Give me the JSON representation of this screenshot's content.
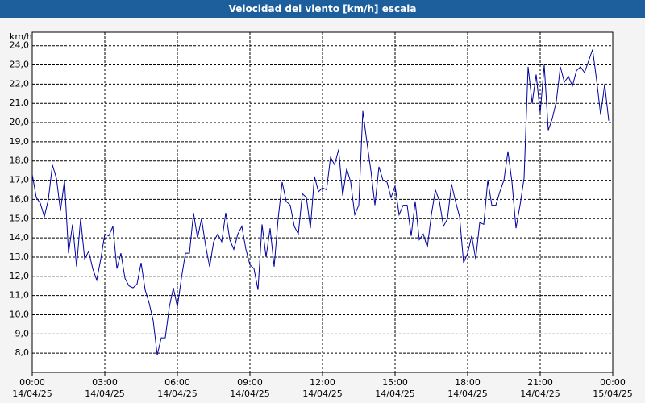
{
  "chart_data": {
    "type": "line",
    "title": "Velocidad del viento [km/h] escala",
    "y_label": "km/h",
    "xlim": [
      0,
      1440
    ],
    "xticks": [
      {
        "value": 0,
        "label": "00:00\n14/04/25"
      },
      {
        "value": 180,
        "label": "03:00\n14/04/25"
      },
      {
        "value": 360,
        "label": "06:00\n14/04/25"
      },
      {
        "value": 540,
        "label": "09:00\n14/04/25"
      },
      {
        "value": 720,
        "label": "12:00\n14/04/25"
      },
      {
        "value": 900,
        "label": "15:00\n14/04/25"
      },
      {
        "value": 1080,
        "label": "18:00\n14/04/25"
      },
      {
        "value": 1260,
        "label": "21:00\n14/04/25"
      },
      {
        "value": 1440,
        "label": "00:00\n15/04/25"
      }
    ],
    "ylim": [
      7,
      24.7
    ],
    "yticks": [
      {
        "value": 8,
        "label": "8,0"
      },
      {
        "value": 9,
        "label": "9,0"
      },
      {
        "value": 10,
        "label": "10,0"
      },
      {
        "value": 11,
        "label": "11,0"
      },
      {
        "value": 12,
        "label": "12,0"
      },
      {
        "value": 13,
        "label": "13,0"
      },
      {
        "value": 14,
        "label": "14,0"
      },
      {
        "value": 15,
        "label": "15,0"
      },
      {
        "value": 16,
        "label": "16,0"
      },
      {
        "value": 17,
        "label": "17,0"
      },
      {
        "value": 18,
        "label": "18,0"
      },
      {
        "value": 19,
        "label": "19,0"
      },
      {
        "value": 20,
        "label": "20,0"
      },
      {
        "value": 21,
        "label": "21,0"
      },
      {
        "value": 22,
        "label": "22,0"
      },
      {
        "value": 23,
        "label": "23,0"
      },
      {
        "value": 24,
        "label": "24,0"
      }
    ],
    "grid": true,
    "x": [
      0,
      10,
      20,
      30,
      40,
      50,
      60,
      70,
      80,
      90,
      100,
      110,
      120,
      130,
      140,
      150,
      160,
      170,
      180,
      190,
      200,
      210,
      220,
      230,
      240,
      250,
      260,
      270,
      280,
      290,
      300,
      310,
      320,
      330,
      340,
      350,
      360,
      370,
      380,
      390,
      400,
      410,
      420,
      430,
      440,
      450,
      460,
      470,
      480,
      490,
      500,
      510,
      520,
      530,
      540,
      550,
      560,
      570,
      580,
      590,
      600,
      610,
      620,
      630,
      640,
      650,
      660,
      670,
      680,
      690,
      700,
      710,
      720,
      730,
      740,
      750,
      760,
      770,
      780,
      790,
      800,
      810,
      820,
      830,
      840,
      850,
      860,
      870,
      880,
      890,
      900,
      910,
      920,
      930,
      940,
      950,
      960,
      970,
      980,
      990,
      1000,
      1010,
      1020,
      1030,
      1040,
      1050,
      1060,
      1070,
      1080,
      1090,
      1100,
      1110,
      1120,
      1130,
      1140,
      1150,
      1160,
      1170,
      1180,
      1190,
      1200,
      1210,
      1220,
      1230,
      1240,
      1250,
      1260,
      1270,
      1280,
      1290,
      1300,
      1310,
      1320,
      1330,
      1340,
      1350,
      1360,
      1370,
      1380,
      1390,
      1400,
      1410,
      1420,
      1430
    ],
    "series": [
      {
        "name": "Velocidad del viento",
        "color": "#0000a0",
        "values": [
          17.3,
          16.1,
          15.8,
          15.1,
          16,
          17.8,
          17.1,
          15.4,
          17,
          13.2,
          14.7,
          12.5,
          15,
          12.9,
          13.3,
          12.4,
          11.8,
          12.9,
          14.2,
          14.1,
          14.6,
          12.4,
          13.2,
          11.9,
          11.5,
          11.4,
          11.6,
          12.7,
          11.3,
          10.6,
          9.7,
          7.9,
          8.8,
          8.8,
          10.4,
          11.4,
          10.4,
          11.9,
          13.2,
          13.2,
          15.3,
          14,
          15,
          13.6,
          12.5,
          13.8,
          14.2,
          13.8,
          15.3,
          13.9,
          13.4,
          14.2,
          14.6,
          13.4,
          12.6,
          12.4,
          11.3,
          14.7,
          13,
          14.5,
          12.5,
          15,
          16.9,
          15.9,
          15.7,
          14.6,
          14.2,
          16.3,
          16.1,
          14.5,
          17.2,
          16.4,
          16.6,
          16.5,
          18.2,
          17.8,
          18.6,
          16.2,
          17.6,
          16.9,
          15.2,
          15.7,
          20.6,
          19,
          17.5,
          15.7,
          17.7,
          17,
          16.9,
          16.1,
          16.7,
          15.2,
          15.7,
          15.7,
          14.1,
          15.9,
          13.9,
          14.2,
          13.5,
          15.2,
          16.5,
          15.9,
          14.6,
          15,
          16.8,
          15.9,
          15.1,
          12.7,
          13.2,
          14.1,
          12.9,
          14.8,
          14.7,
          17,
          15.7,
          15.7,
          16.4,
          17,
          18.5,
          16.9,
          14.5,
          15.7,
          17.1,
          22.9,
          21,
          22.5,
          20.5,
          23,
          19.6,
          20.2,
          21.1,
          22.9,
          22.1,
          22.4,
          21.9,
          22.7,
          22.9,
          22.6,
          23.2,
          23.8,
          22.2,
          20.4,
          22,
          20.1
        ]
      }
    ]
  }
}
